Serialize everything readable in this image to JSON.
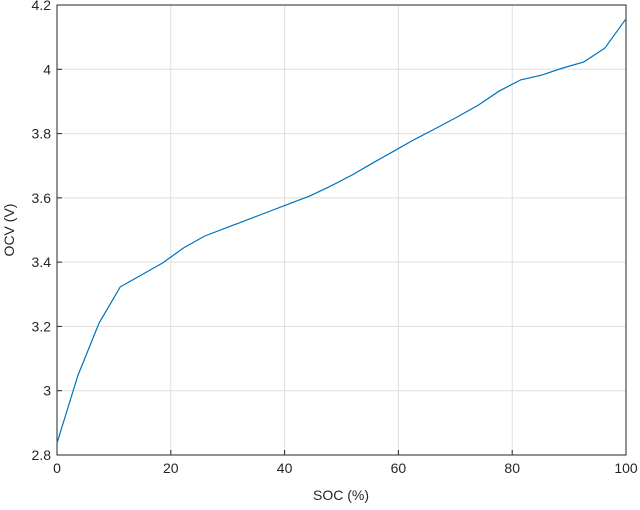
{
  "chart_data": {
    "type": "line",
    "x_label": "SOC (%)",
    "y_label": "OCV (V)",
    "x": [
      0,
      3.7037,
      7.4074,
      11.1111,
      14.8148,
      18.5185,
      22.2222,
      25.9259,
      29.6296,
      33.3333,
      37.037,
      40.7407,
      44.4444,
      48.1481,
      51.8519,
      55.5556,
      59.2593,
      62.963,
      66.6667,
      70.3704,
      74.0741,
      77.7778,
      81.4815,
      85.1852,
      88.8889,
      92.5926,
      96.2963,
      100
    ],
    "series": [
      {
        "color": "#0072bd",
        "values": [
          2.837,
          3.049,
          3.211,
          3.323,
          3.36,
          3.397,
          3.444,
          3.481,
          3.506,
          3.531,
          3.556,
          3.581,
          3.606,
          3.637,
          3.671,
          3.709,
          3.746,
          3.783,
          3.817,
          3.852,
          3.889,
          3.933,
          3.967,
          3.982,
          4.004,
          4.023,
          4.066,
          4.157
        ]
      }
    ],
    "xlim": [
      0,
      100
    ],
    "xticks": [
      0,
      20,
      40,
      60,
      80,
      100
    ],
    "ylim": [
      2.8,
      4.2
    ],
    "yticks": [
      2.8,
      3,
      3.2,
      3.4,
      3.6,
      3.8,
      4,
      4.2
    ],
    "grid": true
  }
}
